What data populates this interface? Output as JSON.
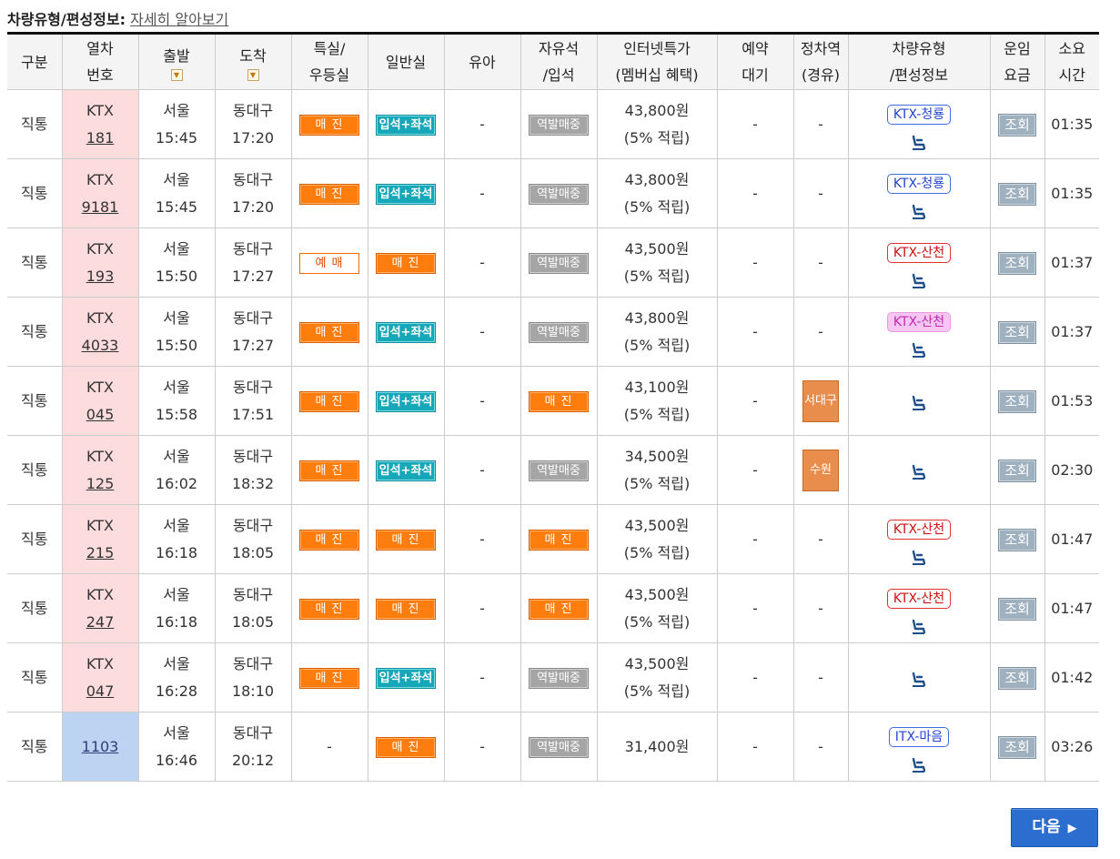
{
  "header": {
    "label": "차량유형/편성정보:",
    "link": "자세히 알아보기"
  },
  "columns": {
    "type": [
      "구분"
    ],
    "train": [
      "열차",
      "번호"
    ],
    "depart": [
      "출발"
    ],
    "arrive": [
      "도착"
    ],
    "special": [
      "특실/",
      "우등실"
    ],
    "general": [
      "일반실"
    ],
    "infant": [
      "유아"
    ],
    "free": [
      "자유석",
      "/입석"
    ],
    "internet": [
      "인터넷특가",
      "(멤버십 혜택)"
    ],
    "reserve": [
      "예약",
      "대기"
    ],
    "stop": [
      "정차역",
      "(경유)"
    ],
    "vehicle": [
      "차량유형",
      "/편성정보"
    ],
    "fare": [
      "운임",
      "요금"
    ],
    "duration": [
      "소요",
      "시간"
    ]
  },
  "sort_icon": "sort-down-icon",
  "labels": {
    "sold": "매 진",
    "seat": "입석+좌석",
    "book": "예 매",
    "station": "역발매중",
    "query": "조회",
    "dash": "-",
    "next": "다음"
  },
  "trains": [
    {
      "type": "직통",
      "ktx": "KTX",
      "num": "181",
      "from": "서울",
      "dep": "15:45",
      "to": "동대구",
      "arr": "17:20",
      "special": "sold",
      "general": "seat",
      "free": "station",
      "price": "43,800원",
      "benefit": "(5% 적립)",
      "reserve": "-",
      "stop": "-",
      "vehicle": "KTX-청룡",
      "vstyle": "blue",
      "duration": "01:35"
    },
    {
      "type": "직통",
      "ktx": "KTX",
      "num": "9181",
      "from": "서울",
      "dep": "15:45",
      "to": "동대구",
      "arr": "17:20",
      "special": "sold",
      "general": "seat",
      "free": "station",
      "price": "43,800원",
      "benefit": "(5% 적립)",
      "reserve": "-",
      "stop": "-",
      "vehicle": "KTX-청룡",
      "vstyle": "blue",
      "duration": "01:35"
    },
    {
      "type": "직통",
      "ktx": "KTX",
      "num": "193",
      "from": "서울",
      "dep": "15:50",
      "to": "동대구",
      "arr": "17:27",
      "special": "book",
      "general": "sold",
      "free": "station",
      "price": "43,500원",
      "benefit": "(5% 적립)",
      "reserve": "-",
      "stop": "-",
      "vehicle": "KTX-산천",
      "vstyle": "red",
      "duration": "01:37"
    },
    {
      "type": "직통",
      "ktx": "KTX",
      "num": "4033",
      "from": "서울",
      "dep": "15:50",
      "to": "동대구",
      "arr": "17:27",
      "special": "sold",
      "general": "seat",
      "free": "station",
      "price": "43,800원",
      "benefit": "(5% 적립)",
      "reserve": "-",
      "stop": "-",
      "vehicle": "KTX-산천",
      "vstyle": "pink",
      "duration": "01:37"
    },
    {
      "type": "직통",
      "ktx": "KTX",
      "num": "045",
      "from": "서울",
      "dep": "15:58",
      "to": "동대구",
      "arr": "17:51",
      "special": "sold",
      "general": "seat",
      "free": "sold",
      "price": "43,100원",
      "benefit": "(5% 적립)",
      "reserve": "-",
      "stop": "서대구",
      "vehicle": "",
      "vstyle": "",
      "duration": "01:53"
    },
    {
      "type": "직통",
      "ktx": "KTX",
      "num": "125",
      "from": "서울",
      "dep": "16:02",
      "to": "동대구",
      "arr": "18:32",
      "special": "sold",
      "general": "seat",
      "free": "station",
      "price": "34,500원",
      "benefit": "(5% 적립)",
      "reserve": "-",
      "stop": "수원",
      "vehicle": "",
      "vstyle": "",
      "duration": "02:30"
    },
    {
      "type": "직통",
      "ktx": "KTX",
      "num": "215",
      "from": "서울",
      "dep": "16:18",
      "to": "동대구",
      "arr": "18:05",
      "special": "sold",
      "general": "sold",
      "free": "sold",
      "price": "43,500원",
      "benefit": "(5% 적립)",
      "reserve": "-",
      "stop": "-",
      "vehicle": "KTX-산천",
      "vstyle": "red",
      "duration": "01:47"
    },
    {
      "type": "직통",
      "ktx": "KTX",
      "num": "247",
      "from": "서울",
      "dep": "16:18",
      "to": "동대구",
      "arr": "18:05",
      "special": "sold",
      "general": "sold",
      "free": "sold",
      "price": "43,500원",
      "benefit": "(5% 적립)",
      "reserve": "-",
      "stop": "-",
      "vehicle": "KTX-산천",
      "vstyle": "red",
      "duration": "01:47"
    },
    {
      "type": "직통",
      "ktx": "KTX",
      "num": "047",
      "from": "서울",
      "dep": "16:28",
      "to": "동대구",
      "arr": "18:10",
      "special": "sold",
      "general": "seat",
      "free": "station",
      "price": "43,500원",
      "benefit": "(5% 적립)",
      "reserve": "-",
      "stop": "-",
      "vehicle": "",
      "vstyle": "",
      "duration": "01:42"
    },
    {
      "type": "직통",
      "ktx": "",
      "num": "1103",
      "from": "서울",
      "dep": "16:46",
      "to": "동대구",
      "arr": "20:12",
      "special": "-",
      "general": "sold",
      "free": "station",
      "price": "31,400원",
      "benefit": "",
      "reserve": "-",
      "stop": "-",
      "vehicle": "ITX-마음",
      "vstyle": "itx",
      "duration": "03:26"
    }
  ],
  "colors": {
    "sold": "#ff7d0c",
    "seat": "#16a8b8",
    "station": "#a5a5a5",
    "query": "#9fb1bf",
    "stop": "#e98d4c",
    "ktx_bg": "#fcdcdc",
    "itx_bg": "#bcd3f2",
    "next": "#2b6ecf"
  },
  "icons": {
    "seat_map": "seat-map-icon",
    "next": "chevron-right-icon"
  }
}
